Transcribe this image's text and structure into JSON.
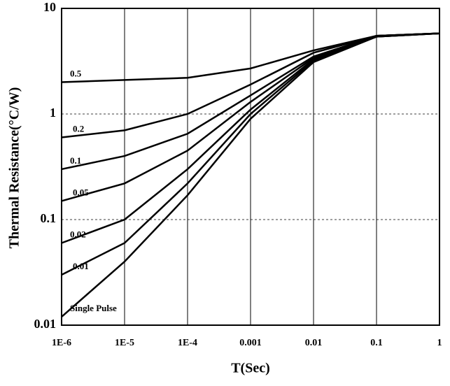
{
  "chart_data": {
    "type": "line",
    "y_label": "Thermal Resistance(°C/W)",
    "x_label": "T(Sec)",
    "x": [
      1e-06,
      1e-05,
      0.0001,
      0.001,
      0.01,
      0.1,
      1
    ],
    "xlim": [
      1e-06,
      1
    ],
    "xticks": [
      {
        "value": 1e-06,
        "label": "1E-6"
      },
      {
        "value": 1e-05,
        "label": "1E-5"
      },
      {
        "value": 0.0001,
        "label": "1E-4"
      },
      0.001,
      0.01,
      0.1,
      1
    ],
    "ylim": [
      0.01,
      10
    ],
    "yticks": [
      0.01,
      0.1,
      1,
      10
    ],
    "log_x": true,
    "log_y": true,
    "grid": true,
    "series": [
      {
        "name": "0.5",
        "color": "#000000",
        "values": [
          2.0,
          2.1,
          2.2,
          2.7,
          4.0,
          5.5,
          5.8
        ]
      },
      {
        "name": "0.2",
        "color": "#000000",
        "values": [
          0.6,
          0.7,
          1.0,
          1.9,
          3.8,
          5.5,
          5.8
        ]
      },
      {
        "name": "0.1",
        "color": "#000000",
        "values": [
          0.3,
          0.4,
          0.65,
          1.5,
          3.5,
          5.5,
          5.8
        ]
      },
      {
        "name": "0.05",
        "color": "#000000",
        "values": [
          0.15,
          0.22,
          0.45,
          1.3,
          3.4,
          5.5,
          5.8
        ]
      },
      {
        "name": "0.02",
        "color": "#000000",
        "values": [
          0.06,
          0.1,
          0.3,
          1.1,
          3.3,
          5.4,
          5.8
        ]
      },
      {
        "name": "0.01",
        "color": "#000000",
        "values": [
          0.03,
          0.06,
          0.22,
          1.0,
          3.2,
          5.4,
          5.8
        ]
      },
      {
        "name": "Single Pulse",
        "color": "#000000",
        "values": [
          0.012,
          0.04,
          0.17,
          0.9,
          3.1,
          5.4,
          5.8
        ]
      }
    ]
  }
}
